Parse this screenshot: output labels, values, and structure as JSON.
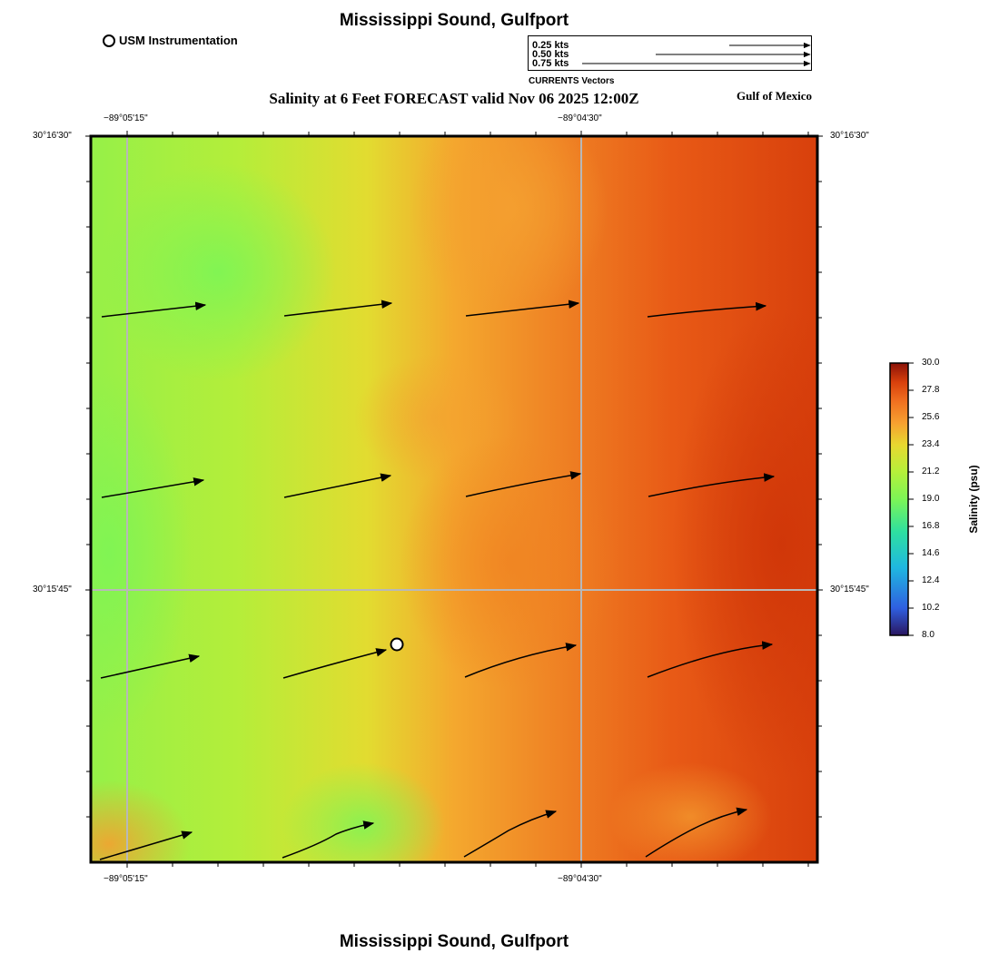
{
  "map": {
    "title_top": "Mississippi Sound, Gulfport",
    "title_bottom": "Mississippi Sound, Gulfport",
    "subtitle": "Salinity at 6 Feet FORECAST valid Nov 06 2025 12:00Z",
    "region_label": "Gulf of Mexico",
    "instrument_legend": "USM Instrumentation",
    "vector_legend": {
      "caption": "CURRENTS Vectors",
      "entries": [
        "0.25 kts",
        "0.50 kts",
        "0.75 kts"
      ],
      "speeds_kts": [
        0.25,
        0.5,
        0.75
      ]
    },
    "axis": {
      "top_ticks": [
        "−89°05'15\"",
        "−89°04'30\""
      ],
      "bottom_ticks": [
        "−89°05'15\"",
        "−89°04'30\""
      ],
      "left_ticks": [
        "30°16'30\"",
        "30°15'45\""
      ],
      "right_ticks": [
        "30°16'30\"",
        "30°15'45\""
      ]
    },
    "colorbar": {
      "title": "Salinity (psu)",
      "min": 8.0,
      "max": 30.0,
      "labels": [
        "30.0",
        "27.8",
        "25.6",
        "23.4",
        "21.2",
        "19.0",
        "16.8",
        "14.6",
        "12.4",
        "10.2",
        "8.0"
      ],
      "colors": [
        "#2a1660",
        "#2f5fe0",
        "#1fb8e0",
        "#2ee0a0",
        "#7cf556",
        "#b5f03a",
        "#e8d830",
        "#f7a030",
        "#f07020",
        "#d8400c",
        "#8a1208"
      ]
    },
    "colors": {
      "grid": "#b8b8b8",
      "frame": "#000000",
      "vector": "#000000",
      "fresh": "#8cf250",
      "mid": "#e0dc30",
      "salty": "#e85414",
      "saltiest": "#d03808"
    }
  }
}
